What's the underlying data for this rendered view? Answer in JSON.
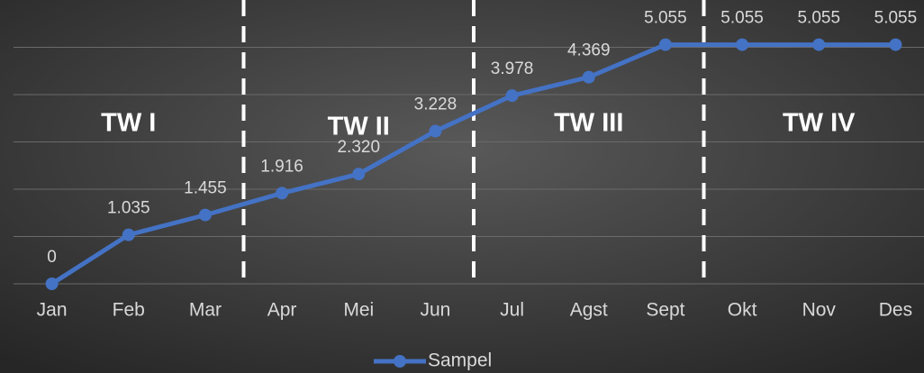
{
  "chart_data": {
    "type": "line",
    "categories": [
      "Jan",
      "Feb",
      "Mar",
      "Apr",
      "Mei",
      "Jun",
      "Jul",
      "Agst",
      "Sept",
      "Okt",
      "Nov",
      "Des"
    ],
    "series": [
      {
        "name": "Sampel",
        "color": "#4472c4",
        "values": [
          0,
          1.035,
          1.455,
          1.916,
          2.32,
          3.228,
          3.978,
          4.369,
          5.055,
          5.055,
          5.055,
          5.055
        ],
        "value_labels": [
          "0",
          "1.035",
          "1.455",
          "1.916",
          "2.320",
          "3.228",
          "3.978",
          "4.369",
          "5.055",
          "5.055",
          "5.055",
          "5.055"
        ]
      }
    ],
    "annotations": [
      "TW I",
      "TW II",
      "TW III",
      "TW IV"
    ],
    "ylim": [
      0,
      6
    ],
    "yticks": [
      0,
      1,
      2,
      3,
      4,
      5
    ],
    "grid": true,
    "legend": "bottom"
  }
}
